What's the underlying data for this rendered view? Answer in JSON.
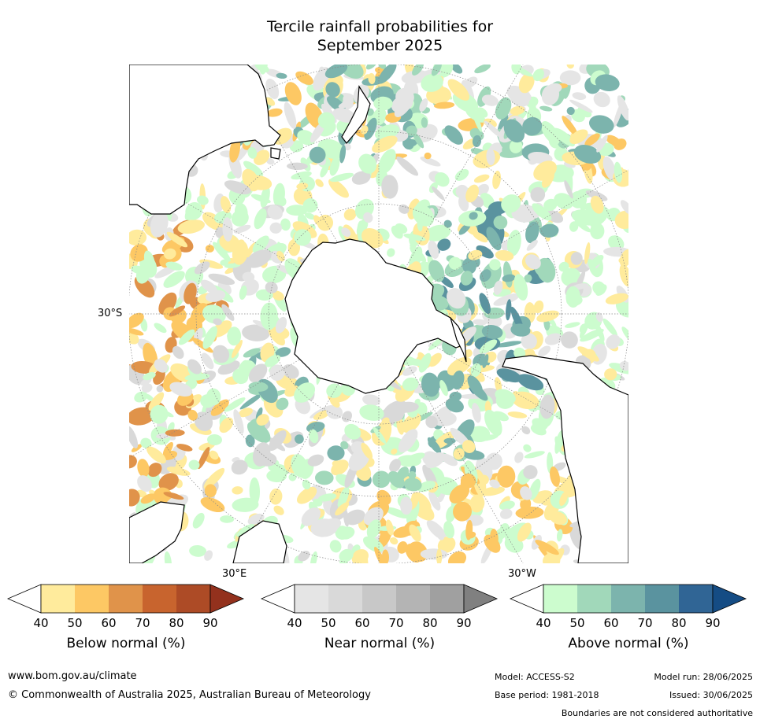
{
  "title": {
    "line1": "Tercile rainfall probabilities for",
    "line2": "September 2025"
  },
  "map": {
    "projection": "south polar stereographic",
    "labels": {
      "lat_30s": "30°S",
      "lon_30e": "30°E",
      "lon_30w": "30°W"
    },
    "colors": {
      "ocean": "#ffffff",
      "coastline": "#000000",
      "boundary": "#888888",
      "graticule": "#888888"
    }
  },
  "colorbars": [
    {
      "label": "Below normal (%)",
      "ticks": [
        "40",
        "50",
        "60",
        "70",
        "80",
        "90"
      ],
      "colors": [
        "#ffffff",
        "#ffeb9c",
        "#fdc864",
        "#e0934a",
        "#c8642e",
        "#ad4b26",
        "#93311d"
      ]
    },
    {
      "label": "Near normal (%)",
      "ticks": [
        "40",
        "50",
        "60",
        "70",
        "80",
        "90"
      ],
      "colors": [
        "#ffffff",
        "#e5e5e5",
        "#d9d9d9",
        "#c8c8c8",
        "#b4b4b4",
        "#a0a0a0",
        "#808080"
      ]
    },
    {
      "label": "Above normal (%)",
      "ticks": [
        "40",
        "50",
        "60",
        "70",
        "80",
        "90"
      ],
      "colors": [
        "#ffffff",
        "#ccfcce",
        "#a1d8ba",
        "#7cb4ad",
        "#5a939f",
        "#306595",
        "#154c84"
      ]
    }
  ],
  "footer": {
    "website": "www.bom.gov.au/climate",
    "copyright": "© Commonwealth of Australia 2025, Australian Bureau of Meteorology",
    "model": "Model: ACCESS-S2",
    "model_run": "Model run: 28/06/2025",
    "base_period": "Base period: 1981-2018",
    "issued": "Issued: 30/06/2025",
    "disclaimer": "Boundaries are not considered authoritative"
  }
}
